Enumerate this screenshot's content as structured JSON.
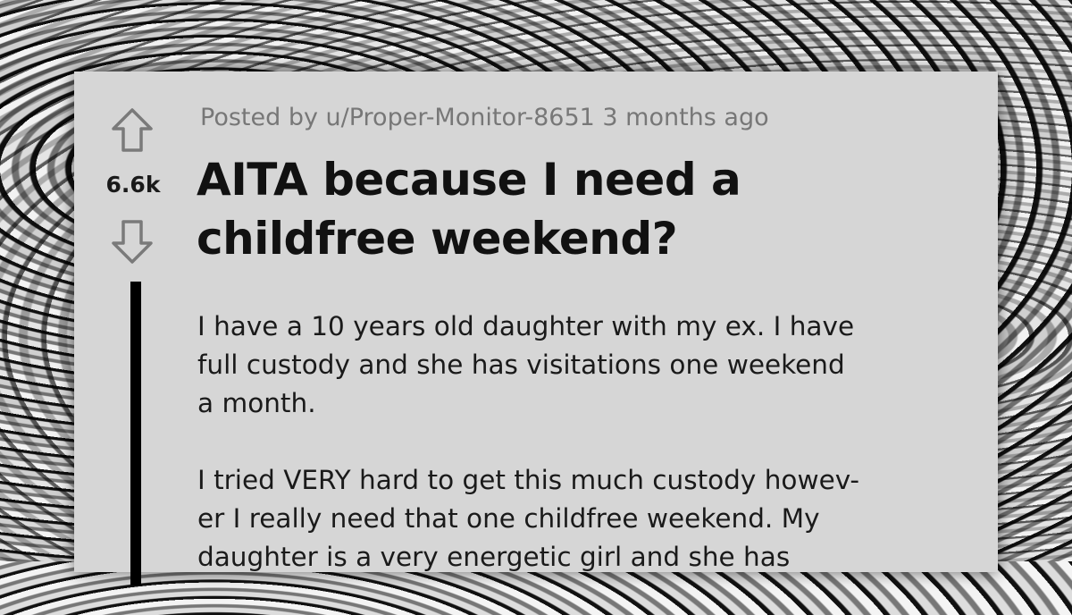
{
  "post": {
    "meta": "Posted by u/Proper-Monitor-8651 3 months ago",
    "score": "6.6k",
    "title_lines": [
      "AITA because I need a",
      "childfree weekend?"
    ],
    "paragraphs": [
      [
        "I have a 10 years old daughter with my ex. I have",
        "full custody and she has visitations one weekend",
        "a month."
      ],
      [
        "I tried VERY hard to get this much custody howev-",
        "er I really need that one childfree weekend. My",
        "daughter is a very energetic girl and she has"
      ]
    ],
    "icons": {
      "upvote": "arrow-up-outline",
      "downvote": "arrow-down-outline"
    },
    "colors": {
      "card": "#d6d6d6",
      "meta": "#777777",
      "text": "#111111",
      "arrow": "#7a7a7a"
    }
  }
}
